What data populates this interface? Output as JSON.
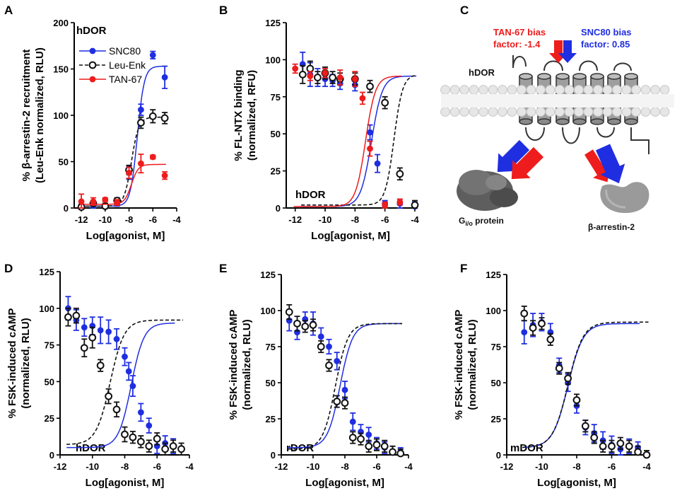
{
  "colors": {
    "snc80": "#1f2ee0",
    "leuenk": "#111111",
    "tan67": "#ee1c1c",
    "gray": "#8a8a8a",
    "dark": "#5a5a5a"
  },
  "chart_data": [
    {
      "id": "A",
      "type": "scatter",
      "panel_letter": "A",
      "receptor": "hDOR",
      "xlabel": "Log[agonist, M]",
      "ylabel1": "% β-arrestin-2 recruitment",
      "ylabel2": "(Leu-Enk normalized, RLU)",
      "xlim": [
        -12.6,
        -4
      ],
      "ylim": [
        0,
        200
      ],
      "xticks": [
        -12,
        -10,
        -8,
        -6,
        -4
      ],
      "xticklabels": [
        "-12",
        "-10",
        "-8",
        "-6",
        "-4"
      ],
      "yticks": [
        0,
        50,
        100,
        150,
        200
      ],
      "yticklabels": [
        "0",
        "50",
        "100",
        "150",
        "200"
      ],
      "legend": [
        "SNC80",
        "Leu-Enk",
        "TAN-67"
      ],
      "series": [
        {
          "name": "SNC80",
          "color": "snc80",
          "style": "solid",
          "filled": true,
          "x": [
            -12,
            -11,
            -10,
            -9,
            -8,
            -7,
            -6,
            -5
          ],
          "y": [
            1,
            3,
            2,
            5,
            38,
            106,
            165,
            141
          ],
          "err": [
            3,
            3,
            3,
            3,
            7,
            6,
            4,
            12
          ],
          "fit": {
            "bottom": 2,
            "top": 153,
            "logec50": -7.3,
            "hill": 1.5
          }
        },
        {
          "name": "Leu-Enk",
          "color": "leuenk",
          "style": "dashed",
          "filled": false,
          "x": [
            -12,
            -11,
            -10,
            -9,
            -8,
            -7,
            -6,
            -5
          ],
          "y": [
            1,
            5,
            2,
            8,
            41,
            92,
            99,
            97
          ],
          "err": [
            3,
            3,
            3,
            3,
            5,
            6,
            7,
            6
          ],
          "fit": {
            "bottom": 2,
            "top": 98,
            "logec50": -7.8,
            "hill": 1.4
          }
        },
        {
          "name": "TAN-67",
          "color": "tan67",
          "style": "solid",
          "filled": true,
          "x": [
            -12,
            -11,
            -10,
            -9,
            -8,
            -7,
            -6,
            -5
          ],
          "y": [
            7,
            7,
            9,
            6,
            38,
            48,
            55,
            35
          ],
          "err": [
            8,
            4,
            2,
            3,
            6,
            10,
            2,
            4
          ],
          "fit": {
            "bottom": 4,
            "top": 47,
            "logec50": -7.8,
            "hill": 1.5
          }
        }
      ]
    },
    {
      "id": "B",
      "type": "scatter",
      "panel_letter": "B",
      "receptor": "hDOR",
      "xlabel": "Log[agonist, M]",
      "ylabel1": "% FL-NTX binding",
      "ylabel2": "(normalized, RFU)",
      "xlim": [
        -12.6,
        -4
      ],
      "ylim": [
        0,
        125
      ],
      "xticks": [
        -12,
        -10,
        -8,
        -6,
        -4
      ],
      "xticklabels": [
        "-12",
        "-10",
        "-8",
        "-6",
        "-4"
      ],
      "yticks": [
        0,
        25,
        50,
        75,
        100,
        125
      ],
      "yticklabels": [
        "0",
        "25",
        "50",
        "75",
        "100",
        "125"
      ],
      "series": [
        {
          "name": "SNC80",
          "color": "snc80",
          "style": "solid",
          "filled": true,
          "x": [
            -11.5,
            -11,
            -10.5,
            -10,
            -9.5,
            -9,
            -8,
            -7,
            -6.5,
            -6,
            -5,
            -4
          ],
          "y": [
            97,
            90,
            88,
            87,
            86,
            84,
            83,
            51,
            30,
            3,
            3,
            1
          ],
          "err": [
            8,
            8,
            6,
            5,
            4,
            4,
            4,
            5,
            6,
            2,
            3,
            3
          ],
          "fit": {
            "bottom": 1,
            "top": 89,
            "logec50": -6.9,
            "hill": 1.2
          }
        },
        {
          "name": "Leu-Enk",
          "color": "leuenk",
          "style": "dashed",
          "filled": false,
          "x": [
            -11.5,
            -11,
            -10.5,
            -10,
            -9.5,
            -9,
            -8,
            -7,
            -6,
            -5,
            -4
          ],
          "y": [
            90,
            94,
            88,
            91,
            88,
            87,
            87,
            82,
            71,
            23,
            2
          ],
          "err": [
            6,
            5,
            4,
            4,
            4,
            4,
            4,
            4,
            4,
            4,
            3
          ],
          "fit": {
            "bottom": 2,
            "top": 90,
            "logec50": -5.4,
            "hill": 1.5
          }
        },
        {
          "name": "TAN-67",
          "color": "tan67",
          "style": "solid",
          "filled": true,
          "x": [
            -12,
            -11,
            -10,
            -9,
            -8,
            -7.5,
            -7,
            -6,
            -5
          ],
          "y": [
            94,
            89,
            91,
            88,
            87,
            74,
            40,
            2,
            4
          ],
          "err": [
            3,
            3,
            3,
            5,
            5,
            4,
            5,
            2,
            2
          ],
          "fit": {
            "bottom": 1,
            "top": 89,
            "logec50": -7.3,
            "hill": 1.3
          }
        }
      ]
    },
    {
      "id": "D",
      "type": "scatter",
      "panel_letter": "D",
      "receptor": "hDOR",
      "xlabel": "Log[agonist, M]",
      "ylabel1": "% FSK-induced cAMP",
      "ylabel2": "(normalized, RLU)",
      "xlim": [
        -12,
        -4
      ],
      "ylim": [
        0,
        125
      ],
      "xticks": [
        -12,
        -10,
        -8,
        -6,
        -4
      ],
      "xticklabels": [
        "-12",
        "-10",
        "-8",
        "-6",
        "-4"
      ],
      "yticks": [
        0,
        25,
        50,
        75,
        100,
        125
      ],
      "yticklabels": [
        "0",
        "25",
        "50",
        "75",
        "100",
        "125"
      ],
      "series": [
        {
          "name": "SNC80",
          "color": "snc80",
          "style": "solid",
          "filled": true,
          "x": [
            -11.5,
            -11,
            -10.5,
            -10,
            -9.5,
            -9,
            -8.5,
            -8,
            -7.75,
            -7.5,
            -7,
            -6.5,
            -6,
            -5.5,
            -5
          ],
          "y": [
            100,
            92,
            87,
            88,
            85,
            84,
            79,
            67,
            57,
            47,
            29,
            20,
            6,
            8,
            6
          ],
          "err": [
            8,
            7,
            6,
            6,
            9,
            8,
            7,
            6,
            6,
            7,
            6,
            5,
            5,
            5,
            5
          ],
          "fit": {
            "bottom": 5,
            "top": 90,
            "logec50": -7.6,
            "hill": 1.1
          }
        },
        {
          "name": "Leu-Enk",
          "color": "leuenk",
          "style": "dashed",
          "filled": false,
          "x": [
            -11.5,
            -11,
            -10.5,
            -10,
            -9.5,
            -9,
            -8.5,
            -8,
            -7.5,
            -7,
            -6.5,
            -6,
            -5.5,
            -5,
            -4.5
          ],
          "y": [
            94,
            95,
            73,
            80,
            61,
            40,
            31,
            14,
            12,
            9,
            6,
            11,
            4,
            6,
            4
          ],
          "err": [
            6,
            5,
            6,
            7,
            4,
            5,
            5,
            5,
            4,
            4,
            4,
            4,
            4,
            4,
            4
          ],
          "fit": {
            "bottom": 7,
            "top": 92,
            "logec50": -8.9,
            "hill": 1.0
          }
        }
      ]
    },
    {
      "id": "E",
      "type": "scatter",
      "panel_letter": "E",
      "receptor": "rDOR",
      "xlabel": "Log[agonist, M]",
      "ylabel1": "% FSK-induced cAMP",
      "ylabel2": "(normalized, RLU)",
      "xlim": [
        -12,
        -4
      ],
      "ylim": [
        0,
        125
      ],
      "xticks": [
        -12,
        -10,
        -8,
        -6,
        -4
      ],
      "xticklabels": [
        "-12",
        "-10",
        "-8",
        "-6",
        "-4"
      ],
      "yticks": [
        0,
        25,
        50,
        75,
        100,
        125
      ],
      "yticklabels": [
        "0",
        "25",
        "50",
        "75",
        "100",
        "125"
      ],
      "series": [
        {
          "name": "SNC80",
          "color": "snc80",
          "style": "solid",
          "filled": true,
          "x": [
            -11.5,
            -11,
            -10.5,
            -10,
            -9.5,
            -9,
            -8.5,
            -8,
            -7.5,
            -7,
            -6.5,
            -6,
            -5.5,
            -5,
            -4.5
          ],
          "y": [
            93,
            85,
            94,
            91,
            82,
            75,
            65,
            45,
            23,
            16,
            14,
            8,
            5,
            2,
            2
          ],
          "err": [
            7,
            5,
            5,
            8,
            6,
            5,
            6,
            6,
            6,
            5,
            5,
            4,
            4,
            4,
            3
          ],
          "fit": {
            "bottom": 5,
            "top": 91,
            "logec50": -8.3,
            "hill": 1.1
          }
        },
        {
          "name": "Leu-Enk",
          "color": "leuenk",
          "style": "dashed",
          "filled": false,
          "x": [
            -11.5,
            -11,
            -10.5,
            -10,
            -9.5,
            -9,
            -8.5,
            -8,
            -7.5,
            -7,
            -6.5,
            -6,
            -5.5,
            -5,
            -4.5
          ],
          "y": [
            99,
            91,
            89,
            90,
            75,
            62,
            37,
            36,
            12,
            11,
            6,
            7,
            6,
            2,
            1
          ],
          "err": [
            5,
            5,
            4,
            4,
            4,
            4,
            4,
            4,
            4,
            4,
            4,
            4,
            4,
            4,
            3
          ],
          "fit": {
            "bottom": 4,
            "top": 91,
            "logec50": -8.6,
            "hill": 1.1
          }
        }
      ]
    },
    {
      "id": "F",
      "type": "scatter",
      "panel_letter": "F",
      "receptor": "mDOR",
      "xlabel": "Log[agonist, M]",
      "ylabel1": "% FSK-induced cAMP",
      "ylabel2": "(normalized, RLU)",
      "xlim": [
        -12,
        -4
      ],
      "ylim": [
        0,
        125
      ],
      "xticks": [
        -12,
        -10,
        -8,
        -6,
        -4
      ],
      "xticklabels": [
        "-12",
        "-10",
        "-8",
        "-6",
        "-4"
      ],
      "yticks": [
        0,
        25,
        50,
        75,
        100,
        125
      ],
      "yticklabels": [
        "0",
        "25",
        "50",
        "75",
        "100",
        "125"
      ],
      "series": [
        {
          "name": "SNC80",
          "color": "snc80",
          "style": "solid",
          "filled": true,
          "x": [
            -11,
            -10.5,
            -10,
            -9.5,
            -9,
            -8.5,
            -8,
            -7.5,
            -7,
            -6.5,
            -6,
            -5.5,
            -5,
            -4.5
          ],
          "y": [
            85,
            90,
            92,
            85,
            62,
            50,
            34,
            19,
            15,
            10,
            7,
            4,
            6,
            5
          ],
          "err": [
            8,
            8,
            6,
            6,
            5,
            6,
            5,
            5,
            6,
            6,
            6,
            5,
            5,
            4
          ],
          "fit": {
            "bottom": 5,
            "top": 91,
            "logec50": -8.5,
            "hill": 1.0
          }
        },
        {
          "name": "Leu-Enk",
          "color": "leuenk",
          "style": "dashed",
          "filled": false,
          "x": [
            -11,
            -10.5,
            -10,
            -9.5,
            -9,
            -8.5,
            -8,
            -7.5,
            -7,
            -6.5,
            -6,
            -5.5,
            -5,
            -4.5,
            -4
          ],
          "y": [
            98,
            88,
            91,
            80,
            60,
            53,
            38,
            20,
            12,
            6,
            6,
            8,
            6,
            2,
            0
          ],
          "err": [
            5,
            5,
            4,
            4,
            4,
            4,
            4,
            4,
            4,
            4,
            4,
            4,
            4,
            4,
            3
          ],
          "fit": {
            "bottom": 5,
            "top": 92,
            "logec50": -8.5,
            "hill": 1.0
          }
        }
      ]
    }
  ],
  "diagram": {
    "panel_letter": "C",
    "receptor_label": "hDOR",
    "tan67_line1": "TAN-67 bias",
    "tan67_line2": "factor: -1.4",
    "snc80_line1": "SNC80 bias",
    "snc80_line2": "factor: 0.85",
    "g_protein_main": "G",
    "g_protein_sub": "i/o",
    "g_protein_suffix": " protein",
    "arrestin_label": "β-arrestin-2"
  }
}
